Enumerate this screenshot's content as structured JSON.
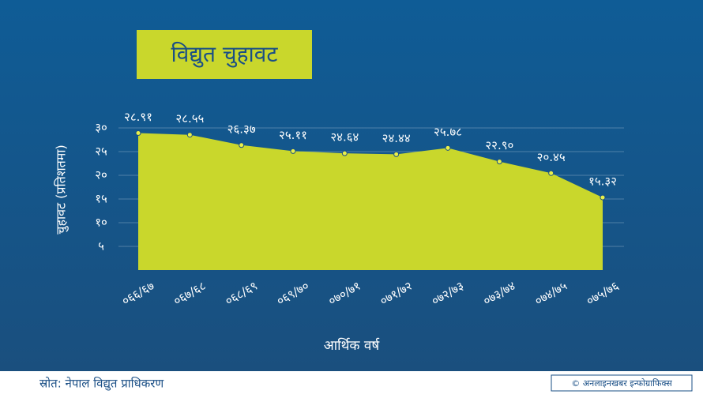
{
  "chart_data": {
    "type": "area",
    "title": "विद्युत चुहावट",
    "y_label": "चुहावट (प्रतिशतमा)",
    "x_label": "आर्थिक वर्ष",
    "source": "स्रोत: नेपाल विद्युत प्राधिकरण",
    "credit": "© अनलाइनखबर इन्फोग्राफिक्स",
    "categories": [
      "०६६/६७",
      "०६७/६८",
      "०६८/६९",
      "०६९/७०",
      "०७०/७१",
      "०७१/७२",
      "०७२/७३",
      "०७३/७४",
      "०७४/७५",
      "०७५/७६"
    ],
    "values": [
      28.91,
      28.55,
      26.37,
      25.11,
      24.64,
      24.44,
      25.78,
      22.9,
      20.45,
      15.32
    ],
    "value_labels": [
      "२८.९१",
      "२८.५५",
      "२६.३७",
      "२५.११",
      "२४.६४",
      "२४.४४",
      "२५.७८",
      "२२.९०",
      "२०.४५",
      "१५.३२"
    ],
    "color": "#c9d72c",
    "ylim": [
      0,
      30
    ],
    "yticks": [
      {
        "value": 5,
        "label": "५"
      },
      {
        "value": 10,
        "label": "१०"
      },
      {
        "value": 15,
        "label": "१५"
      },
      {
        "value": 20,
        "label": "२०"
      },
      {
        "value": 25,
        "label": "२५"
      },
      {
        "value": 30,
        "label": "३०"
      }
    ],
    "grid": true
  }
}
